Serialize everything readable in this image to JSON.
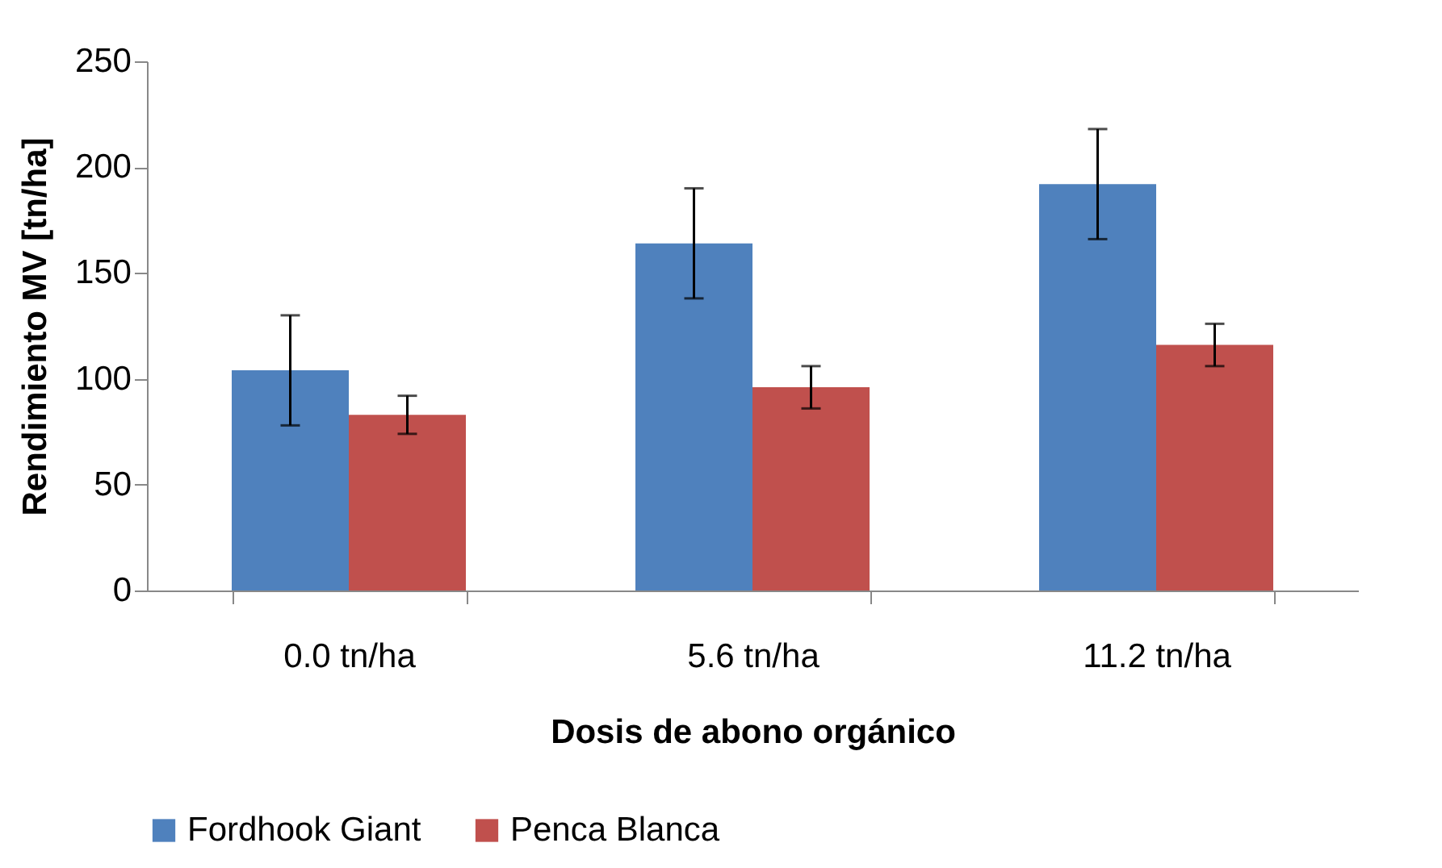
{
  "chart_data": {
    "type": "bar",
    "xlabel": "Dosis de abono orgánico",
    "ylabel": "Rendimiento MV [tn/ha]",
    "categories": [
      "0.0 tn/ha",
      "5.6 tn/ha",
      "11.2 tn/ha"
    ],
    "series": [
      {
        "name": "Fordhook Giant",
        "color": "#4f81bd",
        "values": [
          104,
          164,
          192
        ],
        "errors": [
          26,
          26,
          26
        ]
      },
      {
        "name": "Penca Blanca",
        "color": "#c0504d",
        "values": [
          83,
          96,
          116
        ],
        "errors": [
          9,
          10,
          10
        ]
      }
    ],
    "ylim": [
      0,
      250
    ],
    "yticks": [
      0,
      50,
      100,
      150,
      200,
      250
    ],
    "grid": false,
    "legend": "bottom"
  }
}
